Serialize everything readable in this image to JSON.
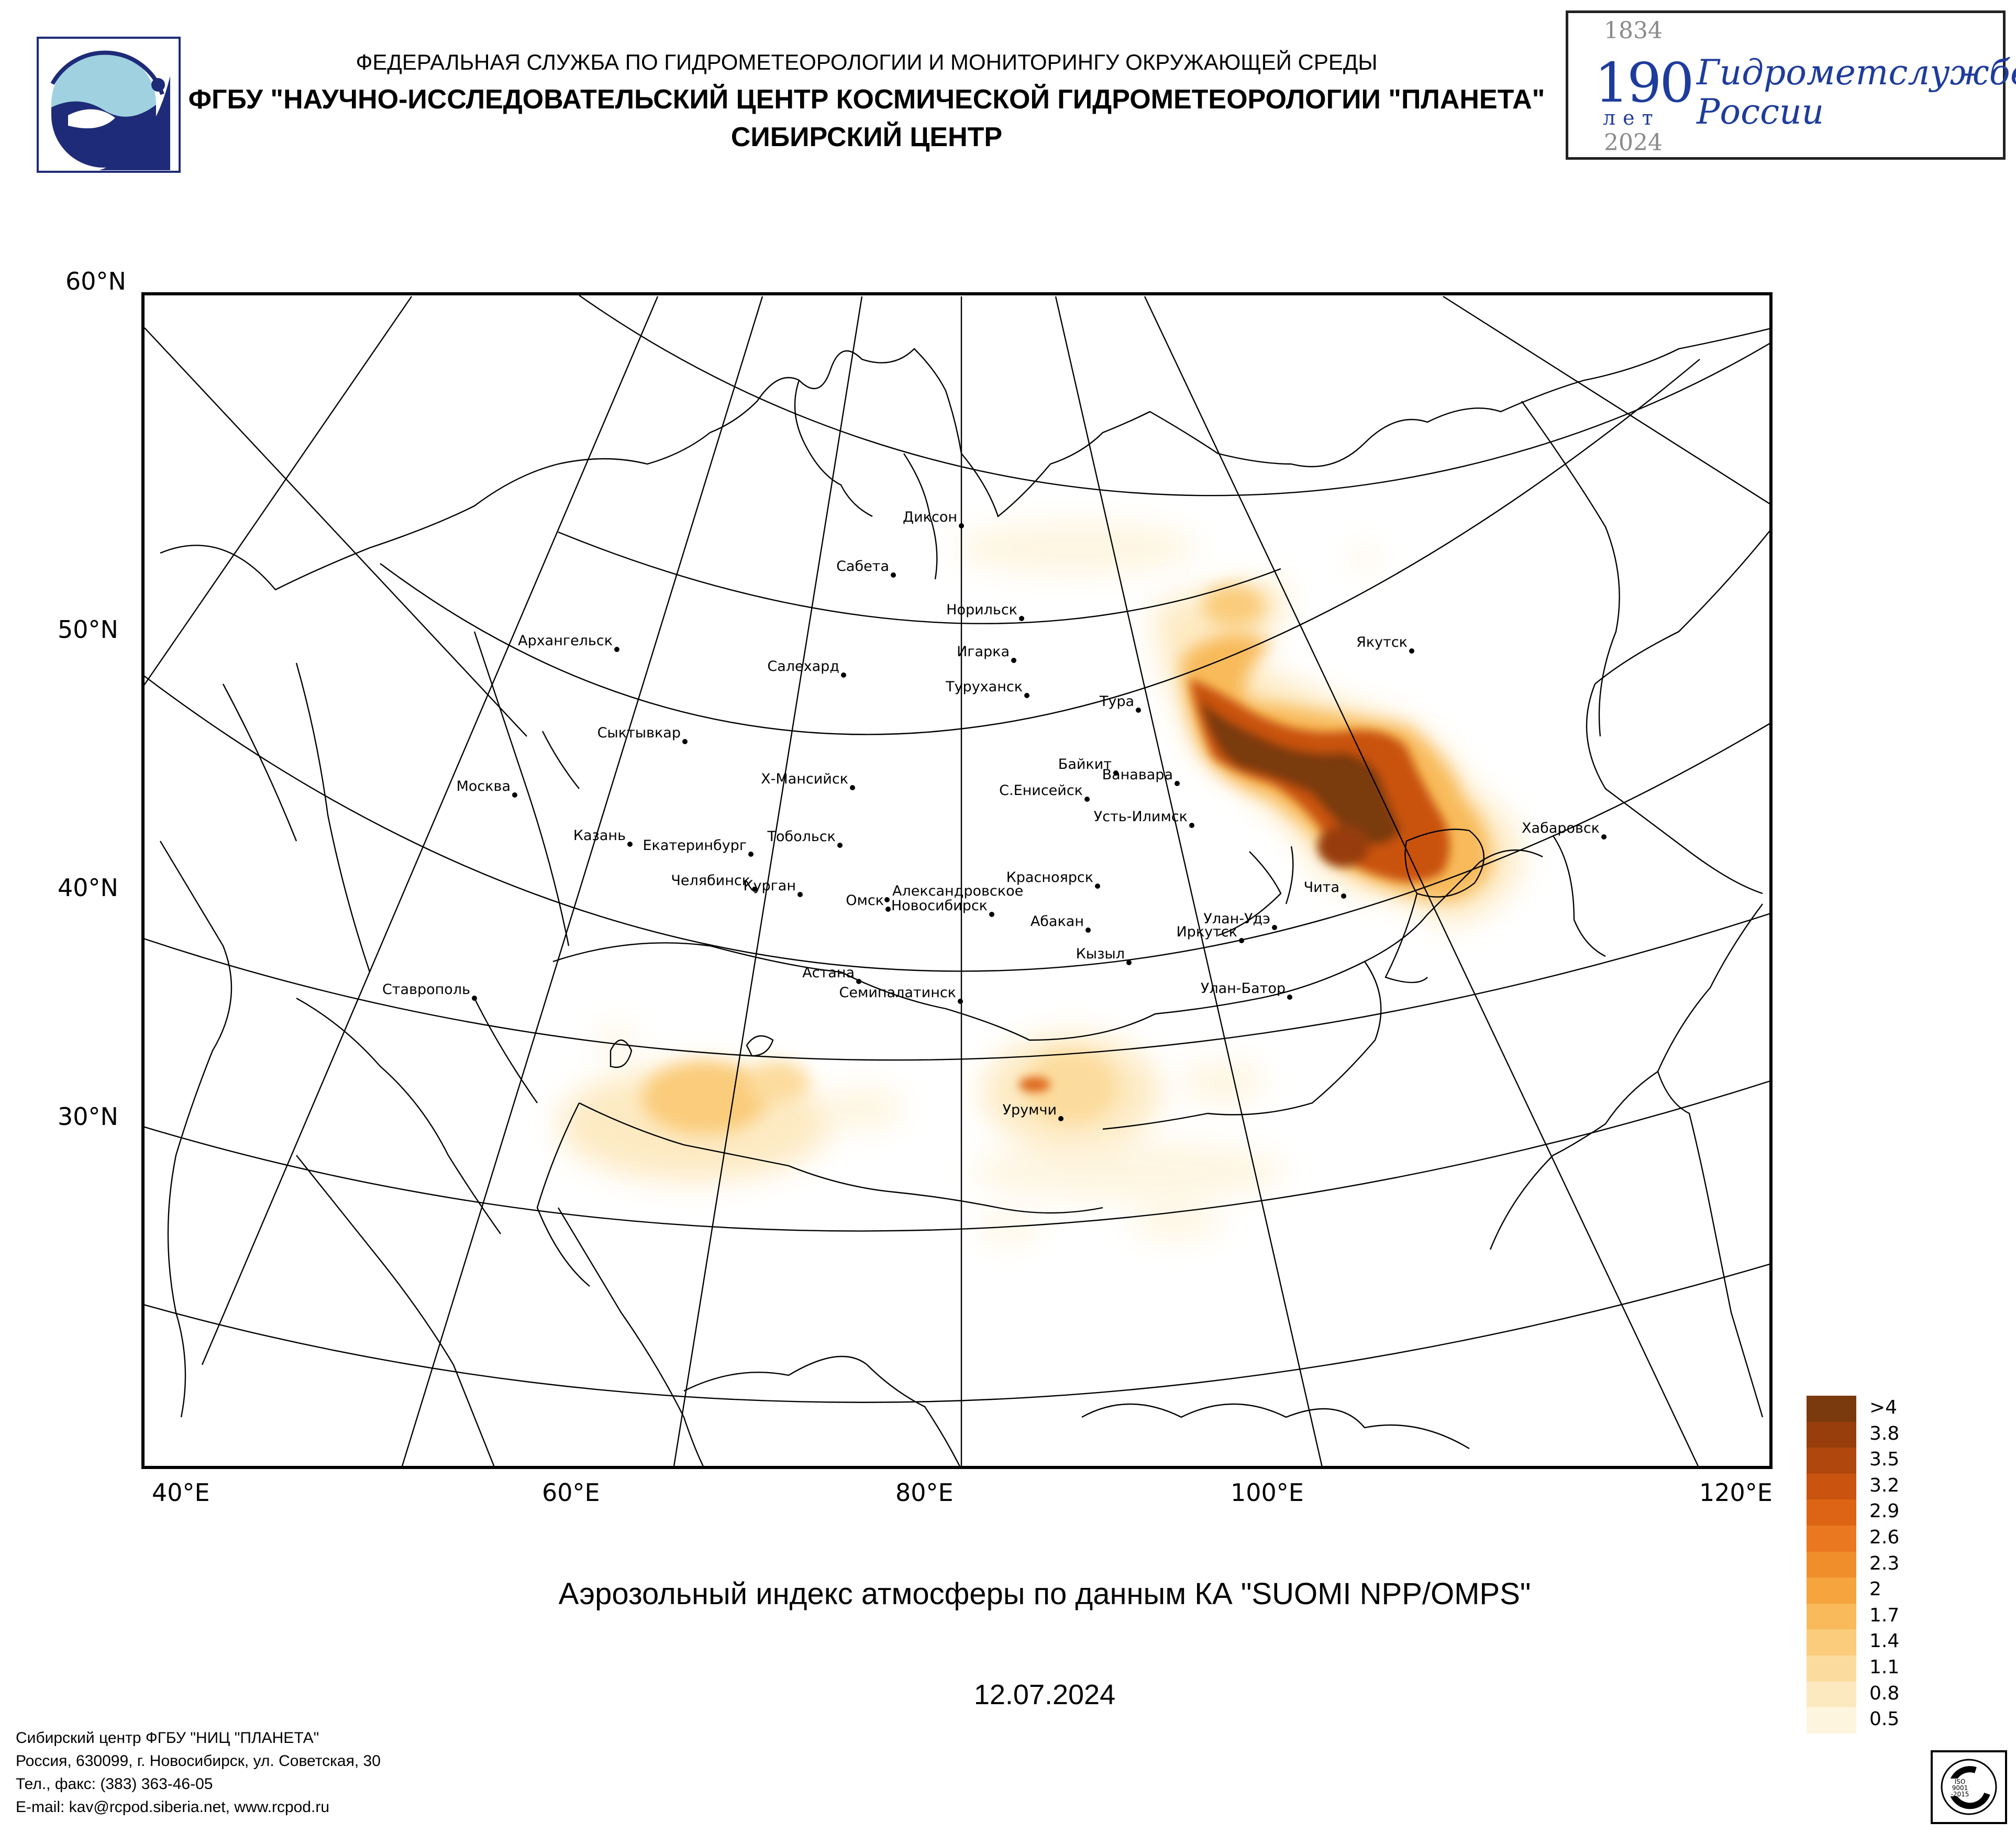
{
  "header": {
    "line1": "ФЕДЕРАЛЬНАЯ СЛУЖБА ПО ГИДРОМЕТЕОРОЛОГИИ И МОНИТОРИНГУ ОКРУЖАЮЩЕЙ СРЕДЫ",
    "line2": "ФГБУ \"НАУЧНО-ИССЛЕДОВАТЕЛЬСКИЙ ЦЕНТР КОСМИЧЕСКОЙ ГИДРОМЕТЕОРОЛОГИИ \"ПЛАНЕТА\"",
    "line3": "СИБИРСКИЙ ЦЕНТР"
  },
  "jubilee": {
    "year_start": "1834",
    "number": "190",
    "years_word": "лет",
    "year_end": "2024",
    "line1": "Гидрометслужбе",
    "line2": "России"
  },
  "map": {
    "lat_labels": [
      "60°N",
      "50°N",
      "40°N",
      "30°N"
    ],
    "lon_labels": [
      "40°E",
      "60°E",
      "80°E",
      "100°E",
      "120°E"
    ],
    "cities": [
      "Диксон",
      "Сабета",
      "Норильск",
      "Игарка",
      "Салехард",
      "Туруханск",
      "Тура",
      "Якутск",
      "Архангельск",
      "Сыктывкар",
      "Байкит",
      "Ванавара",
      "Х-Мансийск",
      "С.Енисейск",
      "Усть-Илимск",
      "Москва",
      "Хабаровск",
      "Казань",
      "Екатеринбург",
      "Тобольск",
      "Красноярск",
      "Чита",
      "Челябинск",
      "Курган",
      "Александровское",
      "Омск",
      "Новосибирск",
      "Абакан",
      "Улан-Удэ",
      "Иркутск",
      "Кызыл",
      "Астана",
      "Семипалатинск",
      "Улан-Батор",
      "Ставрополь",
      "Урумчи"
    ]
  },
  "legend": {
    "labels": [
      ">4",
      "3.8",
      "3.5",
      "3.2",
      "2.9",
      "2.6",
      "2.3",
      "2",
      "1.7",
      "1.4",
      "1.1",
      "0.8",
      "0.5"
    ],
    "colors": [
      "#7a3a0e",
      "#973e0c",
      "#b0470c",
      "#c9530f",
      "#dc6414",
      "#e97820",
      "#f08e2c",
      "#f5a43e",
      "#f8ba5a",
      "#facc7c",
      "#fcdc9e",
      "#fde9c0",
      "#fef5df"
    ]
  },
  "caption": "Аэрозольный индекс атмосферы по данным КА \"SUOMI NPP/OMPS\"",
  "date": "12.07.2024",
  "footer": {
    "line1": "Сибирский центр ФГБУ \"НИЦ \"ПЛАНЕТА\"",
    "line2": "Россия, 630099, г. Новосибирск, ул. Советская, 30",
    "line3": "Тел., факс: (383) 363-46-05",
    "line4": "E-mail: kav@rcpod.siberia.net, www.rcpod.ru"
  }
}
